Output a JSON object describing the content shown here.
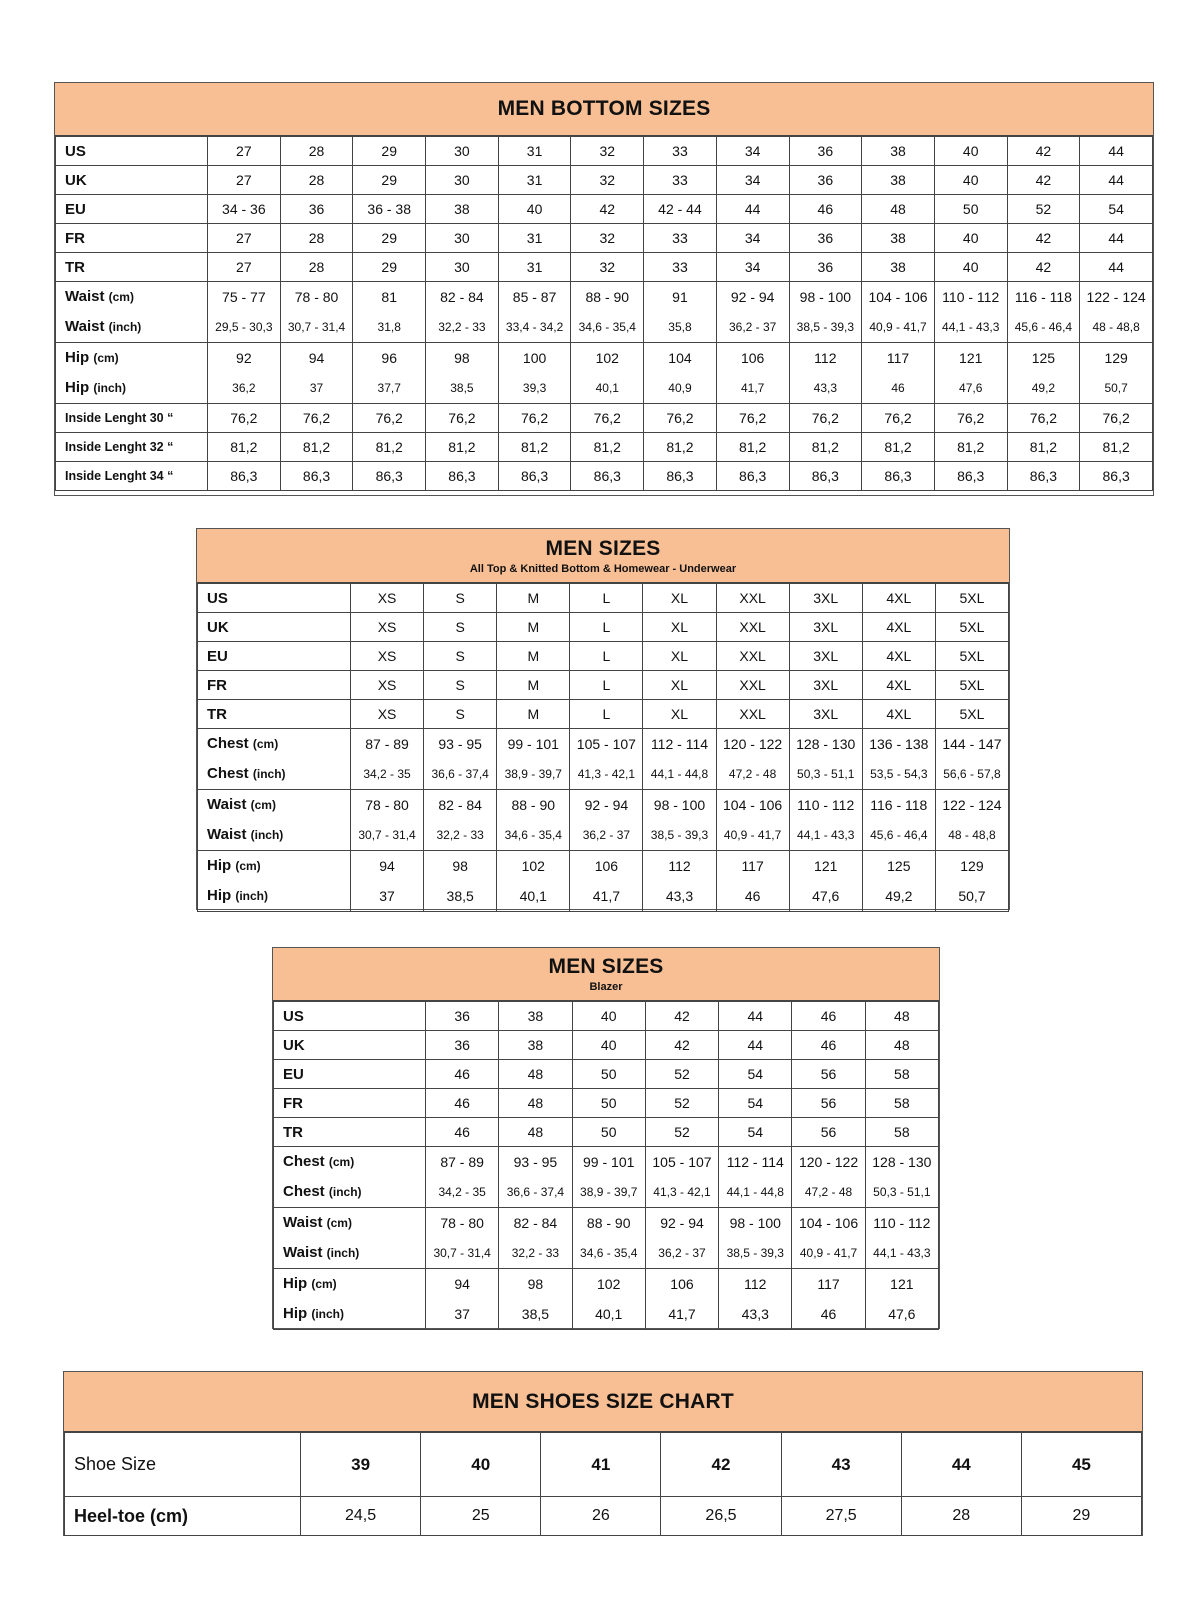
{
  "colors": {
    "header_bg": "#f8bf94",
    "border": "#444444"
  },
  "tables": [
    {
      "title": "MEN BOTTOM SIZES",
      "subtitle": "",
      "rows": [
        {
          "label": "US",
          "values": [
            "27",
            "28",
            "29",
            "30",
            "31",
            "32",
            "33",
            "34",
            "36",
            "38",
            "40",
            "42",
            "44"
          ]
        },
        {
          "label": "UK",
          "values": [
            "27",
            "28",
            "29",
            "30",
            "31",
            "32",
            "33",
            "34",
            "36",
            "38",
            "40",
            "42",
            "44"
          ]
        },
        {
          "label": "EU",
          "values": [
            "34 - 36",
            "36",
            "36 - 38",
            "38",
            "40",
            "42",
            "42 - 44",
            "44",
            "46",
            "48",
            "50",
            "52",
            "54"
          ]
        },
        {
          "label": "FR",
          "values": [
            "27",
            "28",
            "29",
            "30",
            "31",
            "32",
            "33",
            "34",
            "36",
            "38",
            "40",
            "42",
            "44"
          ]
        },
        {
          "label": "TR",
          "values": [
            "27",
            "28",
            "29",
            "30",
            "31",
            "32",
            "33",
            "34",
            "36",
            "38",
            "40",
            "42",
            "44"
          ]
        },
        {
          "label": "Waist",
          "unit": "(cm)",
          "label2": "Waist",
          "unit2": "(inch)",
          "values": [
            "75 - 77",
            "78 - 80",
            "81",
            "82 - 84",
            "85 - 87",
            "88 - 90",
            "91",
            "92 - 94",
            "98 - 100",
            "104 - 106",
            "110 - 112",
            "116 - 118",
            "122 - 124"
          ],
          "values2": [
            "29,5 - 30,3",
            "30,7 - 31,4",
            "31,8",
            "32,2 - 33",
            "33,4 - 34,2",
            "34,6 - 35,4",
            "35,8",
            "36,2 - 37",
            "38,5 - 39,3",
            "40,9 - 41,7",
            "44,1 - 43,3",
            "45,6 - 46,4",
            "48 - 48,8"
          ]
        },
        {
          "label": "Hip",
          "unit": "(cm)",
          "label2": "Hip",
          "unit2": "(inch)",
          "values": [
            "92",
            "94",
            "96",
            "98",
            "100",
            "102",
            "104",
            "106",
            "112",
            "117",
            "121",
            "125",
            "129"
          ],
          "values2": [
            "36,2",
            "37",
            "37,7",
            "38,5",
            "39,3",
            "40,1",
            "40,9",
            "41,7",
            "43,3",
            "46",
            "47,6",
            "49,2",
            "50,7"
          ]
        },
        {
          "label": "Inside Lenght 30 “",
          "small": true,
          "values": [
            "76,2",
            "76,2",
            "76,2",
            "76,2",
            "76,2",
            "76,2",
            "76,2",
            "76,2",
            "76,2",
            "76,2",
            "76,2",
            "76,2",
            "76,2"
          ]
        },
        {
          "label": "Inside Lenght 32 “",
          "small": true,
          "values": [
            "81,2",
            "81,2",
            "81,2",
            "81,2",
            "81,2",
            "81,2",
            "81,2",
            "81,2",
            "81,2",
            "81,2",
            "81,2",
            "81,2",
            "81,2"
          ]
        },
        {
          "label": "Inside Lenght 34 “",
          "small": true,
          "values": [
            "86,3",
            "86,3",
            "86,3",
            "86,3",
            "86,3",
            "86,3",
            "86,3",
            "86,3",
            "86,3",
            "86,3",
            "86,3",
            "86,3",
            "86,3"
          ]
        }
      ]
    },
    {
      "title": "MEN SIZES",
      "subtitle": "All Top & Knitted Bottom & Homewear - Underwear",
      "rows": [
        {
          "label": "US",
          "values": [
            "XS",
            "S",
            "M",
            "L",
            "XL",
            "XXL",
            "3XL",
            "4XL",
            "5XL"
          ]
        },
        {
          "label": "UK",
          "values": [
            "XS",
            "S",
            "M",
            "L",
            "XL",
            "XXL",
            "3XL",
            "4XL",
            "5XL"
          ]
        },
        {
          "label": "EU",
          "values": [
            "XS",
            "S",
            "M",
            "L",
            "XL",
            "XXL",
            "3XL",
            "4XL",
            "5XL"
          ]
        },
        {
          "label": "FR",
          "values": [
            "XS",
            "S",
            "M",
            "L",
            "XL",
            "XXL",
            "3XL",
            "4XL",
            "5XL"
          ]
        },
        {
          "label": "TR",
          "values": [
            "XS",
            "S",
            "M",
            "L",
            "XL",
            "XXL",
            "3XL",
            "4XL",
            "5XL"
          ]
        },
        {
          "label": "Chest",
          "unit": "(cm)",
          "label2": "Chest",
          "unit2": "(inch)",
          "values": [
            "87 - 89",
            "93 - 95",
            "99 - 101",
            "105 - 107",
            "112 - 114",
            "120 - 122",
            "128 - 130",
            "136 - 138",
            "144 - 147"
          ],
          "values2": [
            "34,2 - 35",
            "36,6 - 37,4",
            "38,9 - 39,7",
            "41,3 - 42,1",
            "44,1 - 44,8",
            "47,2 - 48",
            "50,3 - 51,1",
            "53,5 - 54,3",
            "56,6 - 57,8"
          ]
        },
        {
          "label": "Waist",
          "unit": "(cm)",
          "label2": "Waist",
          "unit2": "(inch)",
          "values": [
            "78 - 80",
            "82 - 84",
            "88 - 90",
            "92 - 94",
            "98 - 100",
            "104 - 106",
            "110 - 112",
            "116 - 118",
            "122 - 124"
          ],
          "values2": [
            "30,7 - 31,4",
            "32,2 - 33",
            "34,6 - 35,4",
            "36,2 - 37",
            "38,5 - 39,3",
            "40,9 - 41,7",
            "44,1 - 43,3",
            "45,6 - 46,4",
            "48 - 48,8"
          ]
        },
        {
          "label": "Hip",
          "unit": "(cm)",
          "label2": "Hip",
          "unit2": "(inch)",
          "values": [
            "94",
            "98",
            "102",
            "106",
            "112",
            "117",
            "121",
            "125",
            "129"
          ],
          "values2": [
            "37",
            "38,5",
            "40,1",
            "41,7",
            "43,3",
            "46",
            "47,6",
            "49,2",
            "50,7"
          ],
          "big2": true
        }
      ]
    },
    {
      "title": "MEN SIZES",
      "subtitle": "Blazer",
      "rows": [
        {
          "label": "US",
          "values": [
            "36",
            "38",
            "40",
            "42",
            "44",
            "46",
            "48"
          ]
        },
        {
          "label": "UK",
          "values": [
            "36",
            "38",
            "40",
            "42",
            "44",
            "46",
            "48"
          ]
        },
        {
          "label": "EU",
          "values": [
            "46",
            "48",
            "50",
            "52",
            "54",
            "56",
            "58"
          ]
        },
        {
          "label": "FR",
          "values": [
            "46",
            "48",
            "50",
            "52",
            "54",
            "56",
            "58"
          ]
        },
        {
          "label": "TR",
          "values": [
            "46",
            "48",
            "50",
            "52",
            "54",
            "56",
            "58"
          ]
        },
        {
          "label": "Chest",
          "unit": "(cm)",
          "label2": "Chest",
          "unit2": "(inch)",
          "values": [
            "87 - 89",
            "93 - 95",
            "99 - 101",
            "105 - 107",
            "112 - 114",
            "120 - 122",
            "128 - 130"
          ],
          "values2": [
            "34,2 - 35",
            "36,6 - 37,4",
            "38,9 - 39,7",
            "41,3 - 42,1",
            "44,1 - 44,8",
            "47,2 - 48",
            "50,3 - 51,1"
          ]
        },
        {
          "label": "Waist",
          "unit": "(cm)",
          "label2": "Waist",
          "unit2": "(inch)",
          "values": [
            "78 - 80",
            "82 - 84",
            "88 - 90",
            "92 - 94",
            "98 - 100",
            "104 - 106",
            "110 - 112"
          ],
          "values2": [
            "30,7 - 31,4",
            "32,2 - 33",
            "34,6 - 35,4",
            "36,2 - 37",
            "38,5 - 39,3",
            "40,9 - 41,7",
            "44,1 - 43,3"
          ]
        },
        {
          "label": "Hip",
          "unit": "(cm)",
          "label2": "Hip",
          "unit2": "(inch)",
          "values": [
            "94",
            "98",
            "102",
            "106",
            "112",
            "117",
            "121"
          ],
          "values2": [
            "37",
            "38,5",
            "40,1",
            "41,7",
            "43,3",
            "46",
            "47,6"
          ],
          "big2": true
        }
      ]
    },
    {
      "title": "MEN SHOES SIZE CHART",
      "subtitle": "",
      "rows": [
        {
          "label": "Shoe Size",
          "values": [
            "39",
            "40",
            "41",
            "42",
            "43",
            "44",
            "45"
          ]
        },
        {
          "label": "Heel-toe (cm)",
          "values": [
            "24,5",
            "25",
            "26",
            "26,5",
            "27,5",
            "28",
            "29"
          ]
        }
      ]
    }
  ]
}
